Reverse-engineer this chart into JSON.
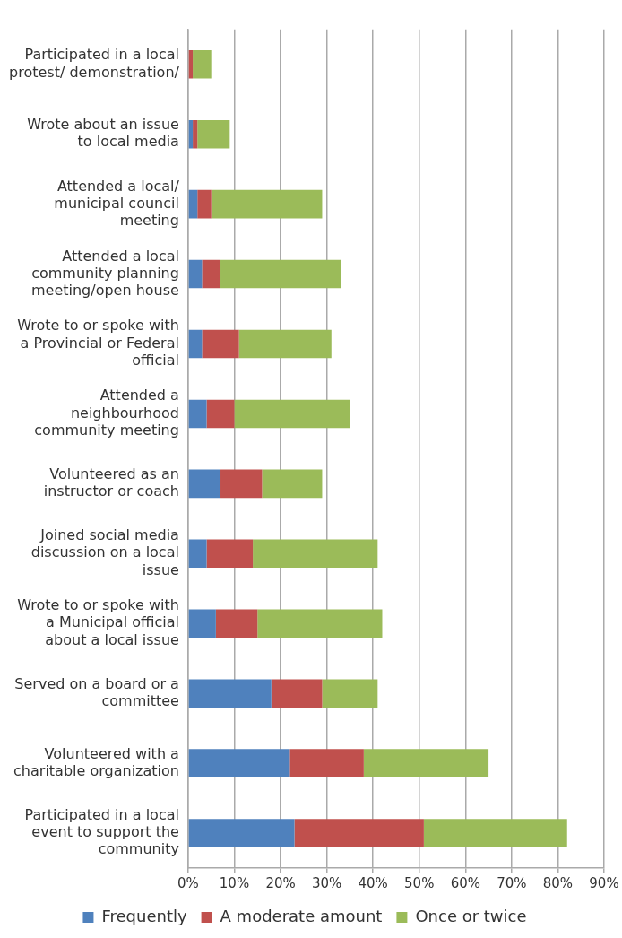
{
  "chart_data": {
    "type": "bar",
    "orientation": "horizontal",
    "stacked": true,
    "categories": [
      "Participated in a local protest/ demonstration/",
      "Wrote about an issue to local media",
      "Attended a local/ municipal council meeting",
      "Attended a local community planning meeting/open house",
      "Wrote to or spoke with a Provincial or Federal official",
      "Attended a neighbourhood community meeting",
      "Volunteered as an instructor or coach",
      "Joined social media discussion on a local issue",
      "Wrote to or spoke with a Municipal official about a local issue",
      "Served on a board or a committee",
      "Volunteered with a charitable organization",
      "Participated in a local event to support the community"
    ],
    "series": [
      {
        "name": "Frequently",
        "color": "#4f81bd",
        "values": [
          0,
          1,
          2,
          3,
          3,
          4,
          7,
          4,
          6,
          18,
          22,
          23
        ]
      },
      {
        "name": "A moderate amount",
        "color": "#c0504d",
        "values": [
          1,
          1,
          3,
          4,
          8,
          6,
          9,
          10,
          9,
          11,
          16,
          28
        ]
      },
      {
        "name": "Once or twice",
        "color": "#9bbb59",
        "values": [
          4,
          7,
          24,
          26,
          20,
          25,
          13,
          27,
          27,
          12,
          27,
          31
        ]
      }
    ],
    "xlim": [
      0,
      90
    ],
    "xticks": [
      {
        "value": 0,
        "label": "0%"
      },
      {
        "value": 10,
        "label": "10%"
      },
      {
        "value": 20,
        "label": "20%"
      },
      {
        "value": 30,
        "label": "30%"
      },
      {
        "value": 40,
        "label": "40%"
      },
      {
        "value": 50,
        "label": "50%"
      },
      {
        "value": 60,
        "label": "60%"
      },
      {
        "value": 70,
        "label": "70%"
      },
      {
        "value": 80,
        "label": "80%"
      },
      {
        "value": 90,
        "label": "90%"
      }
    ],
    "grid": "x",
    "legend": "bottom"
  }
}
